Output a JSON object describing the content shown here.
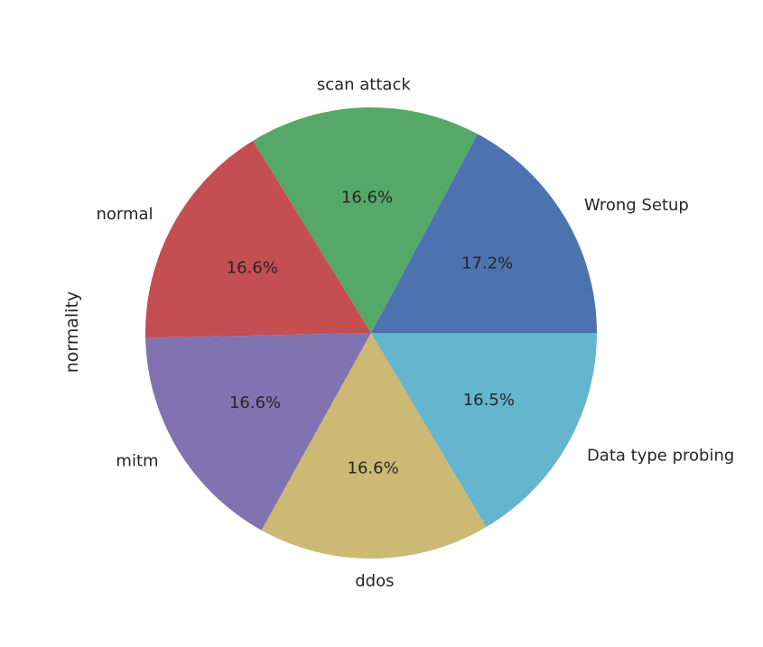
{
  "chart_data": {
    "type": "pie",
    "ylabel": "normality",
    "start_angle": 0,
    "direction": "counterclockwise",
    "slices": [
      {
        "label": "Wrong Setup",
        "value": 17.2,
        "pct_text": "17.2%",
        "color": "#4C72B0"
      },
      {
        "label": "scan attack",
        "value": 16.6,
        "pct_text": "16.6%",
        "color": "#55A868"
      },
      {
        "label": "normal",
        "value": 16.6,
        "pct_text": "16.6%",
        "color": "#C44E52"
      },
      {
        "label": "mitm",
        "value": 16.6,
        "pct_text": "16.6%",
        "color": "#8172B2"
      },
      {
        "label": "ddos",
        "value": 16.6,
        "pct_text": "16.6%",
        "color": "#CCB974"
      },
      {
        "label": "Data type probing",
        "value": 16.5,
        "pct_text": "16.5%",
        "color": "#64B5CD"
      }
    ]
  }
}
